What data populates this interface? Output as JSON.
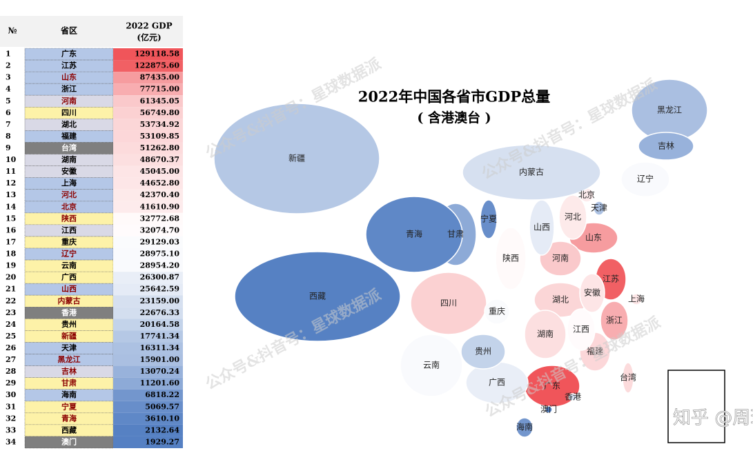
{
  "table": {
    "headers": [
      "№",
      "省区",
      "2022 GDP",
      "(亿元)"
    ],
    "rows": [
      {
        "rank": "1",
        "name": "广东",
        "gdp": "129118.58",
        "bg": "#b4c7e7",
        "text_color": "#000000"
      },
      {
        "rank": "2",
        "name": "江苏",
        "gdp": "122875.60",
        "bg": "#b4c7e7",
        "text_color": "#000000"
      },
      {
        "rank": "3",
        "name": "山东",
        "gdp": "87435.00",
        "bg": "#b4c7e7",
        "text_color": "#8b0000"
      },
      {
        "rank": "4",
        "name": "浙江",
        "gdp": "77715.00",
        "bg": "#b4c7e7",
        "text_color": "#000000"
      },
      {
        "rank": "5",
        "name": "河南",
        "gdp": "61345.05",
        "bg": "#d9d9e6",
        "text_color": "#8b0000"
      },
      {
        "rank": "6",
        "name": "四川",
        "gdp": "56749.80",
        "bg": "#fdf2a8",
        "text_color": "#000000"
      },
      {
        "rank": "7",
        "name": "湖北",
        "gdp": "53734.92",
        "bg": "#d9d9e6",
        "text_color": "#000000"
      },
      {
        "rank": "8",
        "name": "福建",
        "gdp": "53109.85",
        "bg": "#b4c7e7",
        "text_color": "#000000"
      },
      {
        "rank": "9",
        "name": "台湾",
        "gdp": "51262.80",
        "bg": "#7f7f7f",
        "text_color": "#ffffff"
      },
      {
        "rank": "10",
        "name": "湖南",
        "gdp": "48670.37",
        "bg": "#d9d9e6",
        "text_color": "#000000"
      },
      {
        "rank": "11",
        "name": "安徽",
        "gdp": "45045.00",
        "bg": "#d9d9e6",
        "text_color": "#000000"
      },
      {
        "rank": "12",
        "name": "上海",
        "gdp": "44652.80",
        "bg": "#b4c7e7",
        "text_color": "#000000"
      },
      {
        "rank": "13",
        "name": "河北",
        "gdp": "42370.40",
        "bg": "#b4c7e7",
        "text_color": "#8b0000"
      },
      {
        "rank": "14",
        "name": "北京",
        "gdp": "41610.90",
        "bg": "#b4c7e7",
        "text_color": "#8b0000"
      },
      {
        "rank": "15",
        "name": "陕西",
        "gdp": "32772.68",
        "bg": "#fdf2a8",
        "text_color": "#8b0000"
      },
      {
        "rank": "16",
        "name": "江西",
        "gdp": "32074.70",
        "bg": "#d9d9e6",
        "text_color": "#000000"
      },
      {
        "rank": "17",
        "name": "重庆",
        "gdp": "29129.03",
        "bg": "#fdf2a8",
        "text_color": "#000000"
      },
      {
        "rank": "18",
        "name": "辽宁",
        "gdp": "28975.10",
        "bg": "#b4c7e7",
        "text_color": "#8b0000"
      },
      {
        "rank": "19",
        "name": "云南",
        "gdp": "28954.20",
        "bg": "#fdf2a8",
        "text_color": "#000000"
      },
      {
        "rank": "20",
        "name": "广西",
        "gdp": "26300.87",
        "bg": "#fdf2a8",
        "text_color": "#000000"
      },
      {
        "rank": "21",
        "name": "山西",
        "gdp": "25642.59",
        "bg": "#b4c7e7",
        "text_color": "#8b0000"
      },
      {
        "rank": "22",
        "name": "内蒙古",
        "gdp": "23159.00",
        "bg": "#fdf2a8",
        "text_color": "#8b0000"
      },
      {
        "rank": "23",
        "name": "香港",
        "gdp": "22676.33",
        "bg": "#7f7f7f",
        "text_color": "#ffffff"
      },
      {
        "rank": "24",
        "name": "贵州",
        "gdp": "20164.58",
        "bg": "#fdf2a8",
        "text_color": "#000000"
      },
      {
        "rank": "25",
        "name": "新疆",
        "gdp": "17741.34",
        "bg": "#fdf2a8",
        "text_color": "#8b0000"
      },
      {
        "rank": "26",
        "name": "天津",
        "gdp": "16311.34",
        "bg": "#b4c7e7",
        "text_color": "#000000"
      },
      {
        "rank": "27",
        "name": "黑龙江",
        "gdp": "15901.00",
        "bg": "#b4c7e7",
        "text_color": "#8b0000"
      },
      {
        "rank": "28",
        "name": "吉林",
        "gdp": "13070.24",
        "bg": "#d9d9e6",
        "text_color": "#8b0000"
      },
      {
        "rank": "29",
        "name": "甘肃",
        "gdp": "11201.60",
        "bg": "#fdf2a8",
        "text_color": "#8b0000"
      },
      {
        "rank": "30",
        "name": "海南",
        "gdp": "6818.22",
        "bg": "#b4c7e7",
        "text_color": "#000000"
      },
      {
        "rank": "31",
        "name": "宁夏",
        "gdp": "5069.57",
        "bg": "#fdf2a8",
        "text_color": "#8b0000"
      },
      {
        "rank": "32",
        "name": "青海",
        "gdp": "3610.10",
        "bg": "#fdf2a8",
        "text_color": "#8b0000"
      },
      {
        "rank": "33",
        "name": "西藏",
        "gdp": "2132.64",
        "bg": "#fdf2a8",
        "text_color": "#000000"
      },
      {
        "rank": "34",
        "name": "澳门",
        "gdp": "1929.27",
        "bg": "#7f7f7f",
        "text_color": "#ffffff"
      }
    ]
  },
  "map": {
    "title": "2022年中国各省市GDP总量",
    "subtitle": "( 含港澳台 )",
    "watermark": "公众号&抖音号：星球数据派",
    "credit": "知乎 @周瑞"
  }
}
